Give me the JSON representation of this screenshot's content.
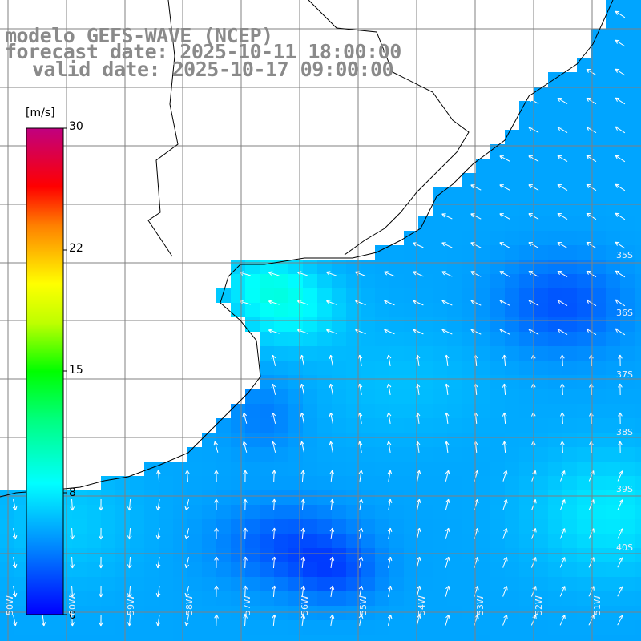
{
  "title": {
    "model": "modelo GEFS-WAVE (NCEP)",
    "forecast": "forecast date: 2025-10-11 18:00:00",
    "valid": "valid date: 2025-10-17 09:00:00"
  },
  "colorbar": {
    "units": "[m/s]",
    "min": 0,
    "max": 30,
    "ticks": [
      "30",
      "22",
      "15",
      "8",
      "0"
    ],
    "tick_values": [
      30,
      22,
      15,
      8,
      0
    ]
  },
  "grid": {
    "lat_labels": [
      "35S",
      "36S",
      "37S",
      "38S",
      "39S",
      "40S"
    ],
    "lon_labels": [
      "60W",
      "59W",
      "58W",
      "57W",
      "56W",
      "55W",
      "54W",
      "53W",
      "52W",
      "51W",
      "50W"
    ]
  },
  "colors": {
    "land": "#ffffff",
    "grid_line": "#808080",
    "coast": "#000000",
    "arrow": "#ffffff",
    "title_text": "#8a8a8a"
  }
}
